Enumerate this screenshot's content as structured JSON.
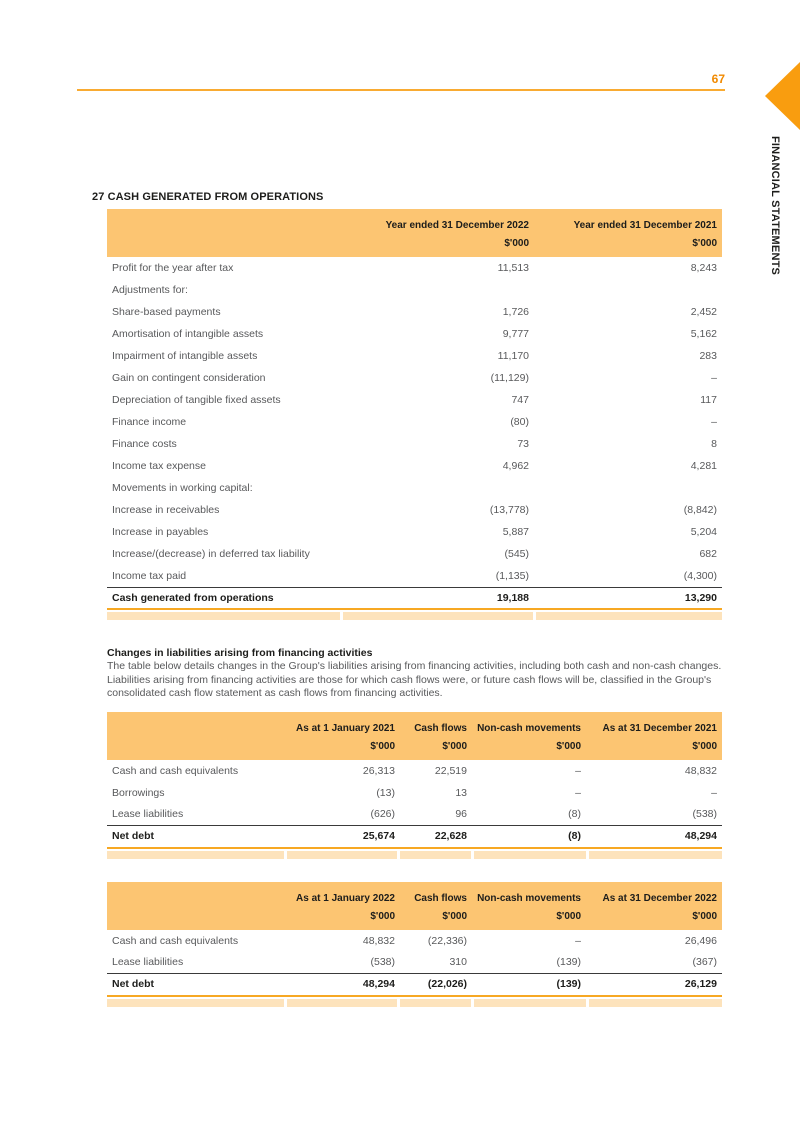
{
  "page": {
    "number": "67",
    "side_tab": "FINANCIAL STATEMENTS"
  },
  "colors": {
    "accent_orange": "#F99D0F",
    "table_header_bg": "#FCC572",
    "band_bg": "#FDE3BC",
    "rule_orange": "#F7A823",
    "body_text_gray": "#58595B",
    "dark_text": "#1D1D1B"
  },
  "section1": {
    "heading": "27 CASH GENERATED FROM OPERATIONS"
  },
  "section2": {
    "heading": "Changes in liabilities arising from financing activities",
    "paragraph": "The table below details changes in the Group's liabilities arising from financing activities, including both cash and non-cash changes. Liabilities arising from financing activities are those for which cash flows were, or future cash flows will be, classified in the Group's consolidated cash flow statement as cash flows from financing activities."
  },
  "tables": {
    "cash_generated": {
      "columns": [
        "",
        "Year ended 31 December 2022",
        "Year ended 31 December 2021"
      ],
      "units": [
        "",
        "$'000",
        "$'000"
      ],
      "rows": [
        {
          "label": "Profit for the year after tax",
          "values": [
            "11,513",
            "8,243"
          ]
        },
        {
          "label": "Adjustments for:",
          "values": [
            "",
            ""
          ]
        },
        {
          "label": "Share-based payments",
          "values": [
            "1,726",
            "2,452"
          ]
        },
        {
          "label": "Amortisation of intangible assets",
          "values": [
            "9,777",
            "5,162"
          ]
        },
        {
          "label": "Impairment of intangible assets",
          "values": [
            "11,170",
            "283"
          ]
        },
        {
          "label": "Gain on contingent consideration",
          "values": [
            "(11,129)",
            "–"
          ]
        },
        {
          "label": "Depreciation of tangible fixed assets",
          "values": [
            "747",
            "117"
          ]
        },
        {
          "label": "Finance income",
          "values": [
            "(80)",
            "–"
          ]
        },
        {
          "label": "Finance costs",
          "values": [
            "73",
            "8"
          ]
        },
        {
          "label": "Income tax expense",
          "values": [
            "4,962",
            "4,281"
          ]
        },
        {
          "label": "Movements in working capital:",
          "values": [
            "",
            ""
          ]
        },
        {
          "label": "Increase in receivables",
          "values": [
            "(13,778)",
            "(8,842)"
          ]
        },
        {
          "label": "Increase in payables",
          "values": [
            "5,887",
            "5,204"
          ]
        },
        {
          "label": "Increase/(decrease) in deferred tax liability",
          "values": [
            "(545)",
            "682"
          ]
        },
        {
          "label": "Income tax paid",
          "values": [
            "(1,135)",
            "(4,300)"
          ]
        }
      ],
      "total_row": {
        "label": "Cash generated from operations",
        "values": [
          "19,188",
          "13,290"
        ]
      }
    },
    "net_debt_2021": {
      "columns": [
        "",
        "As at 1 January 2021",
        "Cash flows",
        "Non-cash movements",
        "As at 31 December 2021"
      ],
      "units": [
        "",
        "$'000",
        "$'000",
        "$'000",
        "$'000"
      ],
      "rows": [
        {
          "label": "Cash and cash equivalents",
          "values": [
            "26,313",
            "22,519",
            "–",
            "48,832"
          ]
        },
        {
          "label": "Borrowings",
          "values": [
            "(13)",
            "13",
            "–",
            "–"
          ]
        },
        {
          "label": "Lease liabilities",
          "values": [
            "(626)",
            "96",
            "(8)",
            "(538)"
          ]
        }
      ],
      "total_row": {
        "label": "Net debt",
        "values": [
          "25,674",
          "22,628",
          "(8)",
          "48,294"
        ]
      }
    },
    "net_debt_2022": {
      "columns": [
        "",
        "As at 1 January 2022",
        "Cash flows",
        "Non-cash movements",
        "As at 31 December 2022"
      ],
      "units": [
        "",
        "$'000",
        "$'000",
        "$'000",
        "$'000"
      ],
      "rows": [
        {
          "label": "Cash and cash equivalents",
          "values": [
            "48,832",
            "(22,336)",
            "–",
            "26,496"
          ]
        },
        {
          "label": "Lease liabilities",
          "values": [
            "(538)",
            "310",
            "(139)",
            "(367)"
          ]
        }
      ],
      "total_row": {
        "label": "Net debt",
        "values": [
          "48,294",
          "(22,026)",
          "(139)",
          "26,129"
        ]
      }
    }
  }
}
